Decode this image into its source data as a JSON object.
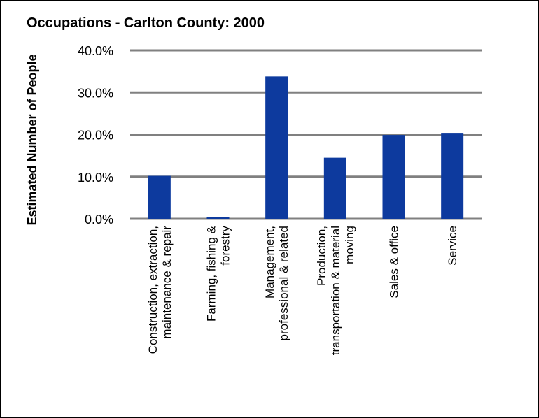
{
  "chart_data": {
    "type": "bar",
    "title": "Occupations - Carlton County: 2000",
    "ylabel": "Estimated Number of People",
    "xlabel": "",
    "ylim": [
      0,
      40
    ],
    "yticks": [
      0,
      10,
      20,
      30,
      40
    ],
    "ytick_labels": [
      "0.0%",
      "10.0%",
      "20.0%",
      "30.0%",
      "40.0%"
    ],
    "grid": true,
    "categories": [
      [
        "Construction, extraction,",
        "maintenance & repair"
      ],
      [
        "Farming, fishing &",
        "forestry"
      ],
      [
        "Management,",
        "professional & related"
      ],
      [
        "Production,",
        "transportation & material",
        "moving"
      ],
      [
        "Sales & office"
      ],
      [
        "Service"
      ]
    ],
    "values": [
      10.2,
      0.4,
      33.8,
      14.5,
      19.9,
      20.4
    ],
    "bar_color": "#0d3a9e",
    "grid_color": "#808080"
  }
}
